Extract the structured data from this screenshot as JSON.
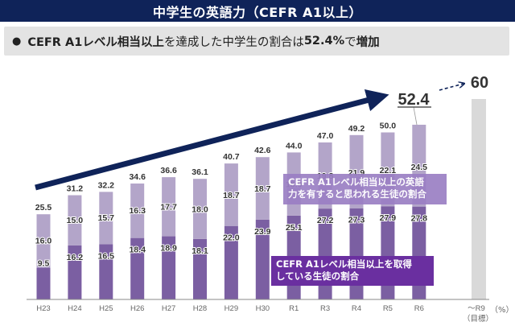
{
  "header": {
    "title": "中学生の英語力（CEFR A1以上）"
  },
  "summary": {
    "bullet": "●",
    "bold_prefix": "CEFR A1レベル相当以上",
    "text_middle": "を達成した中学生の割合は",
    "bold_value": "52.4%",
    "text_tail": "で",
    "bold_end": "増加"
  },
  "chart_data": {
    "type": "bar",
    "stacked": true,
    "title": "中学生の英語力（CEFR A1以上）",
    "xlabel": "",
    "ylabel": "",
    "unit_label": "（%）",
    "ylim": [
      0,
      60
    ],
    "categories": [
      "H23",
      "H24",
      "H25",
      "H26",
      "H27",
      "H28",
      "H29",
      "H30",
      "R1",
      "R3",
      "R4",
      "R5",
      "R6"
    ],
    "series": [
      {
        "name": "CEFR A1レベル相当以上を取得している生徒の割合",
        "color": "#7b5fa2",
        "values": [
          9.5,
          16.2,
          16.5,
          18.4,
          18.9,
          18.1,
          22.0,
          23.9,
          25.1,
          27.2,
          27.3,
          27.9,
          27.8
        ]
      },
      {
        "name": "CEFR A1レベル相当以上の英語力を有すると思われる生徒の割合",
        "color": "#b3a5c9",
        "values": [
          16.0,
          15.0,
          15.7,
          16.3,
          17.7,
          18.0,
          18.7,
          18.7,
          18.9,
          19.8,
          21.9,
          22.1,
          24.5
        ]
      }
    ],
    "totals": [
      25.5,
      31.2,
      32.2,
      34.6,
      36.6,
      36.1,
      40.7,
      42.6,
      44.0,
      47.0,
      49.2,
      50.0,
      52.4
    ],
    "total_labels": [
      "25.5",
      "31.2",
      "32.2",
      "34.6",
      "36.6",
      "36.1",
      "40.7",
      "42.6",
      "44.0",
      "47.0",
      "49.2",
      "50.0",
      "52.4"
    ],
    "lower_labels": [
      "9.5",
      "16.2",
      "16.5",
      "18.4",
      "18.9",
      "18.1",
      "22.0",
      "23.9",
      "25.1",
      "27.2",
      "27.3",
      "27.9",
      "27.8"
    ],
    "upper_labels": [
      "16.0",
      "15.0",
      "15.7",
      "16.3",
      "17.7",
      "18.0",
      "18.7",
      "18.7",
      "18.9",
      "19.8",
      "21.9",
      "22.1",
      "24.5"
    ],
    "target": {
      "category": "～R9",
      "sublabel": "（目標）",
      "value": 60,
      "label": "60",
      "color": "#d9d9d9"
    },
    "highlight_value_label": "52.4",
    "annotations": [
      "trend arrow rising from H23 to R6",
      "dashed arrow from 52.4 to target 60"
    ],
    "legend": {
      "upper": "CEFR A1レベル相当以上の英語力を有すると思われる生徒の割合",
      "lower": "CEFR A1レベル相当以上を取得している生徒の割合"
    },
    "grid": false
  },
  "legend_boxes": {
    "upper_line1": "CEFR A1レベル相当以上の英語",
    "upper_line2": "力を有すると思われる生徒の割合",
    "lower_line1": "CEFR A1レベル相当以上を取得",
    "lower_line2": "している生徒の割合",
    "upper_color": "#9b7fc4",
    "lower_color": "#6a2fa0"
  }
}
